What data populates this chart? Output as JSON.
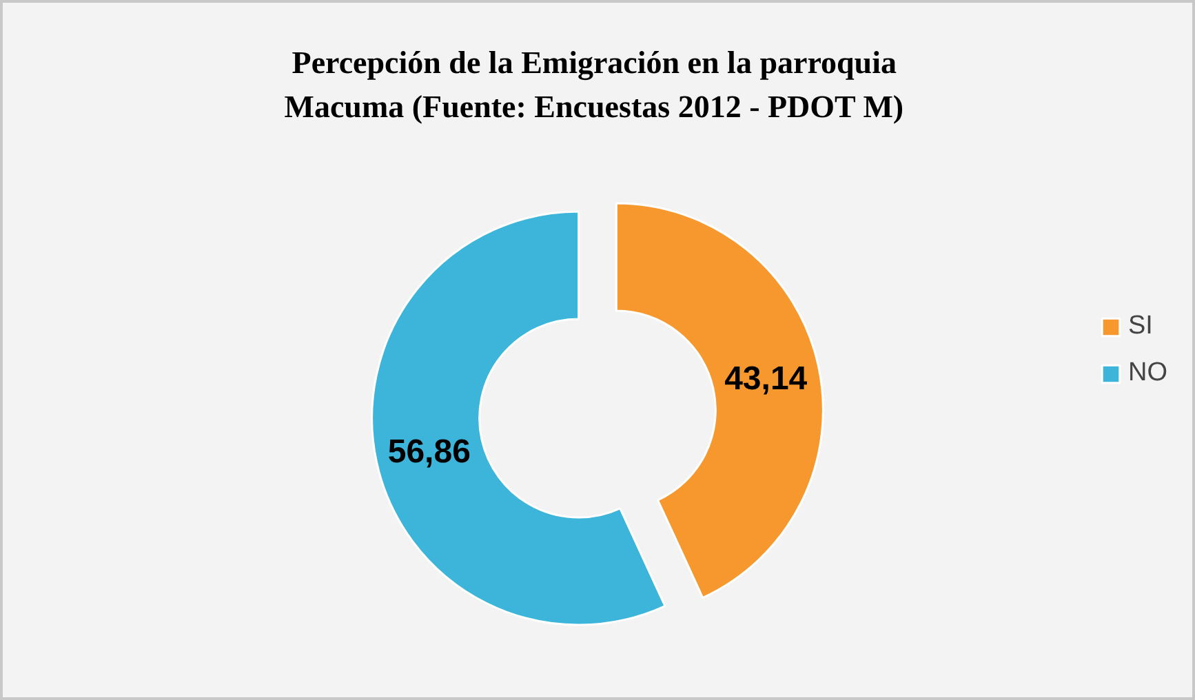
{
  "chart_data": {
    "type": "donut",
    "title": "Percepción  de la Emigración en la parroquia\nMacuma  (Fuente: Encuestas 2012 - PDOT M)",
    "categories": [
      "SI",
      "NO"
    ],
    "values": [
      43.14,
      56.86
    ],
    "value_labels": [
      "43,14",
      "56,86"
    ],
    "colors": [
      "#f7982e",
      "#3db5da"
    ],
    "legend": "right"
  }
}
